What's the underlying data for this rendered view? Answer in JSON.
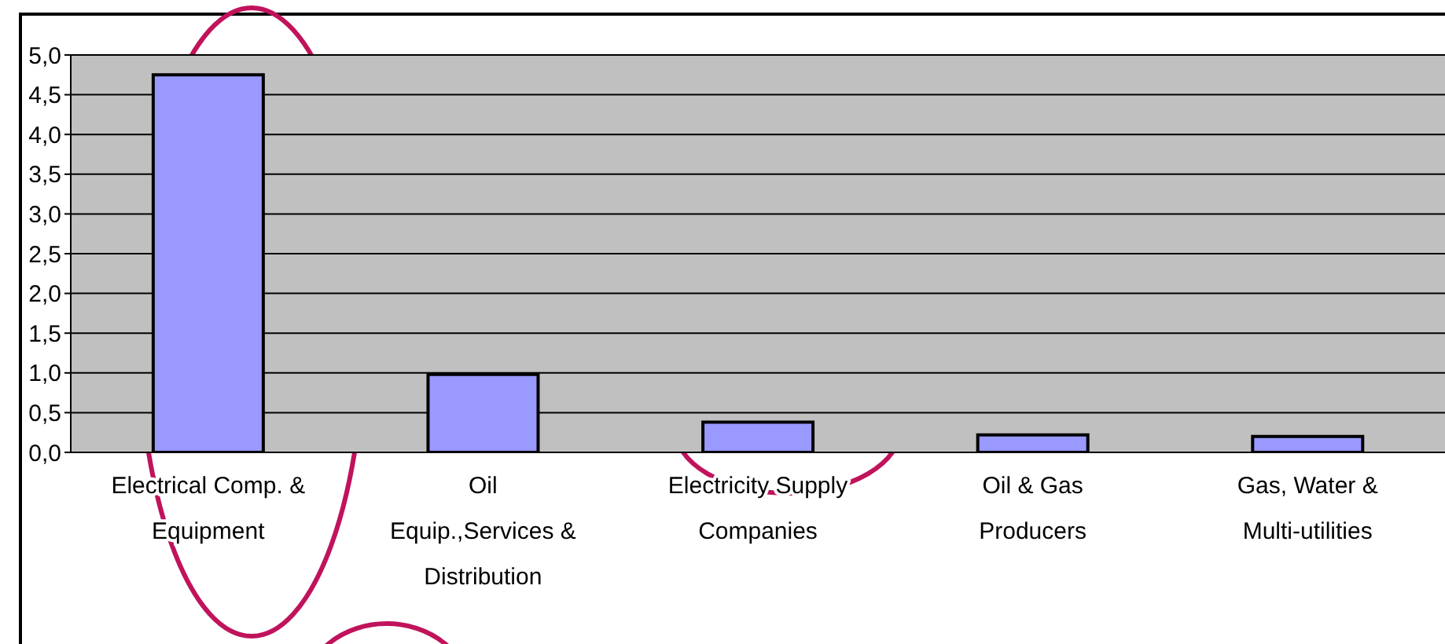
{
  "chart_data": {
    "type": "bar",
    "categories": [
      "Electrical Comp. & Equipment",
      "Oil Equip.,Services & Distribution",
      "Electricity Supply Companies",
      "Oil & Gas Producers",
      "Gas, Water & Multi-utilities"
    ],
    "values": [
      4.75,
      0.98,
      0.38,
      0.22,
      0.2
    ],
    "color": "#9999ff",
    "ylim": [
      0,
      5
    ],
    "yticks": [
      {
        "value": 0,
        "label": "0,0"
      },
      {
        "value": 0.5,
        "label": "0,5"
      },
      {
        "value": 1,
        "label": "1,0"
      },
      {
        "value": 1.5,
        "label": "1,5"
      },
      {
        "value": 2,
        "label": "2,0"
      },
      {
        "value": 2.5,
        "label": "2,5"
      },
      {
        "value": 3,
        "label": "3,0"
      },
      {
        "value": 3.5,
        "label": "3,5"
      },
      {
        "value": 4,
        "label": "4,0"
      },
      {
        "value": 4.5,
        "label": "4,5"
      },
      {
        "value": 5,
        "label": "5,0"
      }
    ],
    "grid": "y"
  }
}
